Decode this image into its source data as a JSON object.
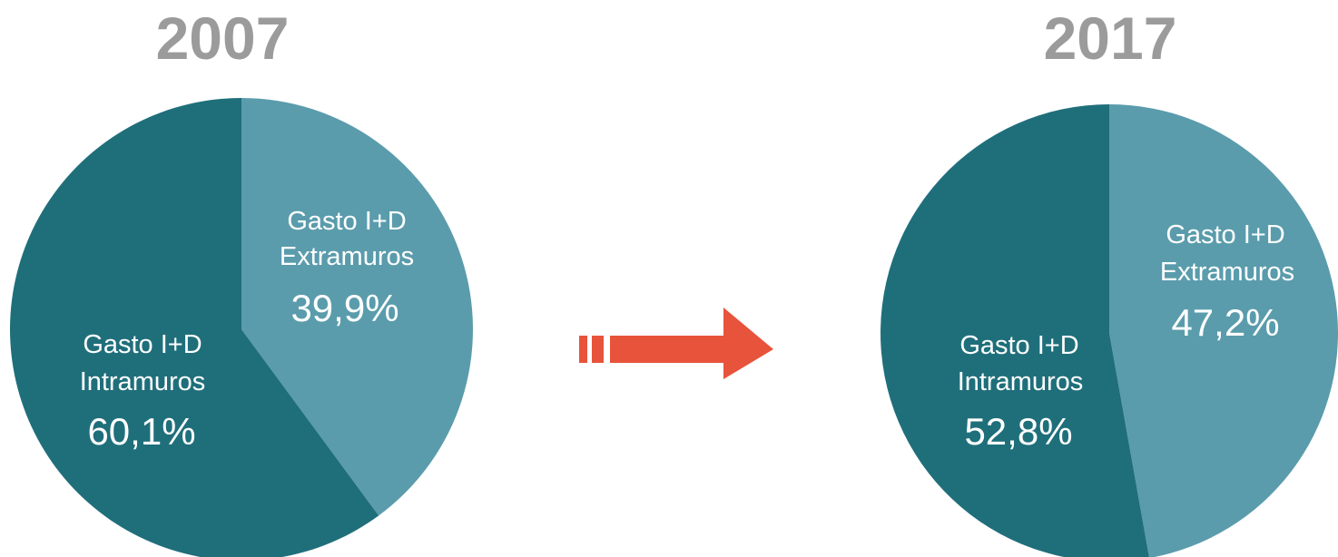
{
  "chart_data": [
    {
      "type": "pie",
      "title": "2007",
      "slices": [
        {
          "label_line1": "Gasto I+D",
          "label_line2": "Extramuros",
          "value": 39.9,
          "value_text": "39,9%",
          "color": "#5a9cac"
        },
        {
          "label_line1": "Gasto I+D",
          "label_line2": "Intramuros",
          "value": 60.1,
          "value_text": "60,1%",
          "color": "#1f6f7b"
        }
      ]
    },
    {
      "type": "pie",
      "title": "2017",
      "slices": [
        {
          "label_line1": "Gasto I+D",
          "label_line2": "Extramuros",
          "value": 47.2,
          "value_text": "47,2%",
          "color": "#5a9cac"
        },
        {
          "label_line1": "Gasto I+D",
          "label_line2": "Intramuros",
          "value": 52.8,
          "value_text": "52,8%",
          "color": "#1f6f7b"
        }
      ]
    }
  ],
  "arrow": {
    "icon": "arrow-right-icon",
    "color": "#e8533b"
  }
}
